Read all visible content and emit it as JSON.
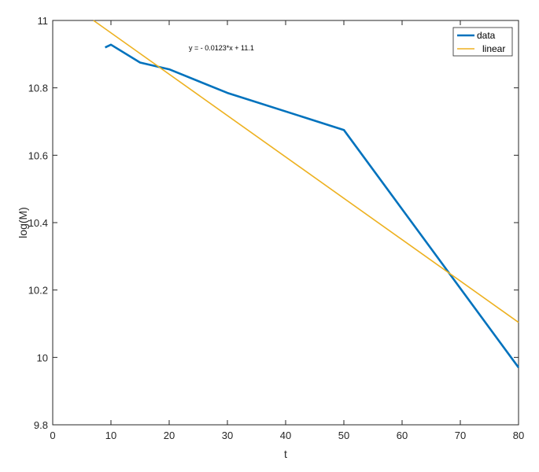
{
  "chart_data": {
    "type": "line",
    "title": "",
    "xlabel": "t",
    "ylabel": "log(M)",
    "xlim": [
      0,
      80
    ],
    "ylim": [
      9.8,
      11
    ],
    "xticks": [
      0,
      10,
      20,
      30,
      40,
      50,
      60,
      70,
      80
    ],
    "yticks": [
      9.8,
      10,
      10.2,
      10.4,
      10.6,
      10.8,
      11
    ],
    "xtick_labels": [
      "0",
      "10",
      "20",
      "30",
      "40",
      "50",
      "60",
      "70",
      "80"
    ],
    "ytick_labels": [
      "9.8",
      "10",
      "10.2",
      "10.4",
      "10.6",
      "10.8",
      "11"
    ],
    "grid": false,
    "legend_position": "top-right",
    "annotation": "y = - 0.0123*x + 11.1",
    "series": [
      {
        "name": "data",
        "color": "#0072BD",
        "x": [
          9,
          10,
          15,
          20,
          30,
          50,
          80
        ],
        "y": [
          10.92,
          10.928,
          10.875,
          10.855,
          10.785,
          10.675,
          9.97
        ]
      },
      {
        "name": "linear",
        "color": "#EDB120",
        "x": [
          7,
          80
        ],
        "y": [
          11.0,
          10.104
        ]
      }
    ]
  }
}
